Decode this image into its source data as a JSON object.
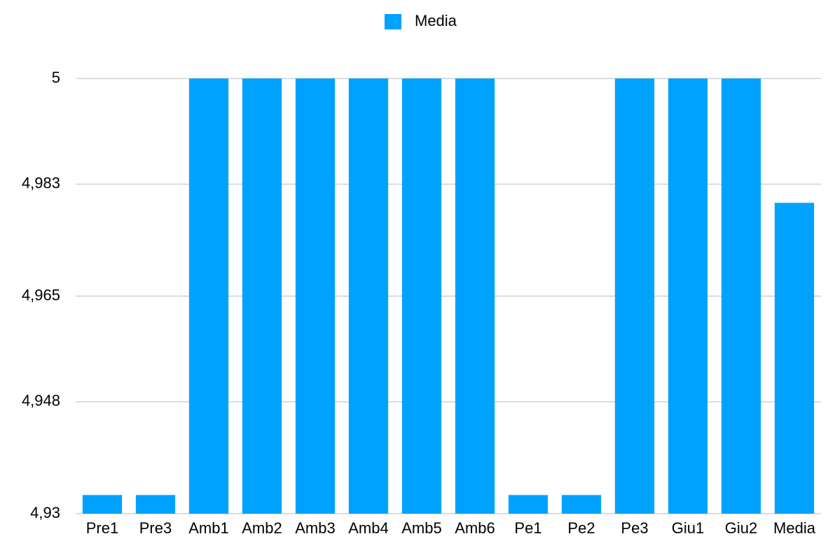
{
  "chart_data": {
    "type": "bar",
    "categories": [
      "Pre1",
      "Pre3",
      "Amb1",
      "Amb2",
      "Amb3",
      "Amb4",
      "Amb5",
      "Amb6",
      "Pe1",
      "Pe2",
      "Pe3",
      "Giu1",
      "Giu2",
      "Media"
    ],
    "series": [
      {
        "name": "Media",
        "color": "#00a2ff",
        "values": [
          4.933,
          4.933,
          5,
          5,
          5,
          5,
          5,
          5,
          4.933,
          4.933,
          5,
          5,
          5,
          4.98
        ]
      }
    ],
    "ylim": [
      4.93,
      5
    ],
    "yticks": [
      {
        "value": 4.93,
        "label": "4,93"
      },
      {
        "value": 4.948,
        "label": "4,948"
      },
      {
        "value": 4.965,
        "label": "4,965"
      },
      {
        "value": 4.983,
        "label": "4,983"
      },
      5
    ],
    "grid": true,
    "legend": "top"
  }
}
